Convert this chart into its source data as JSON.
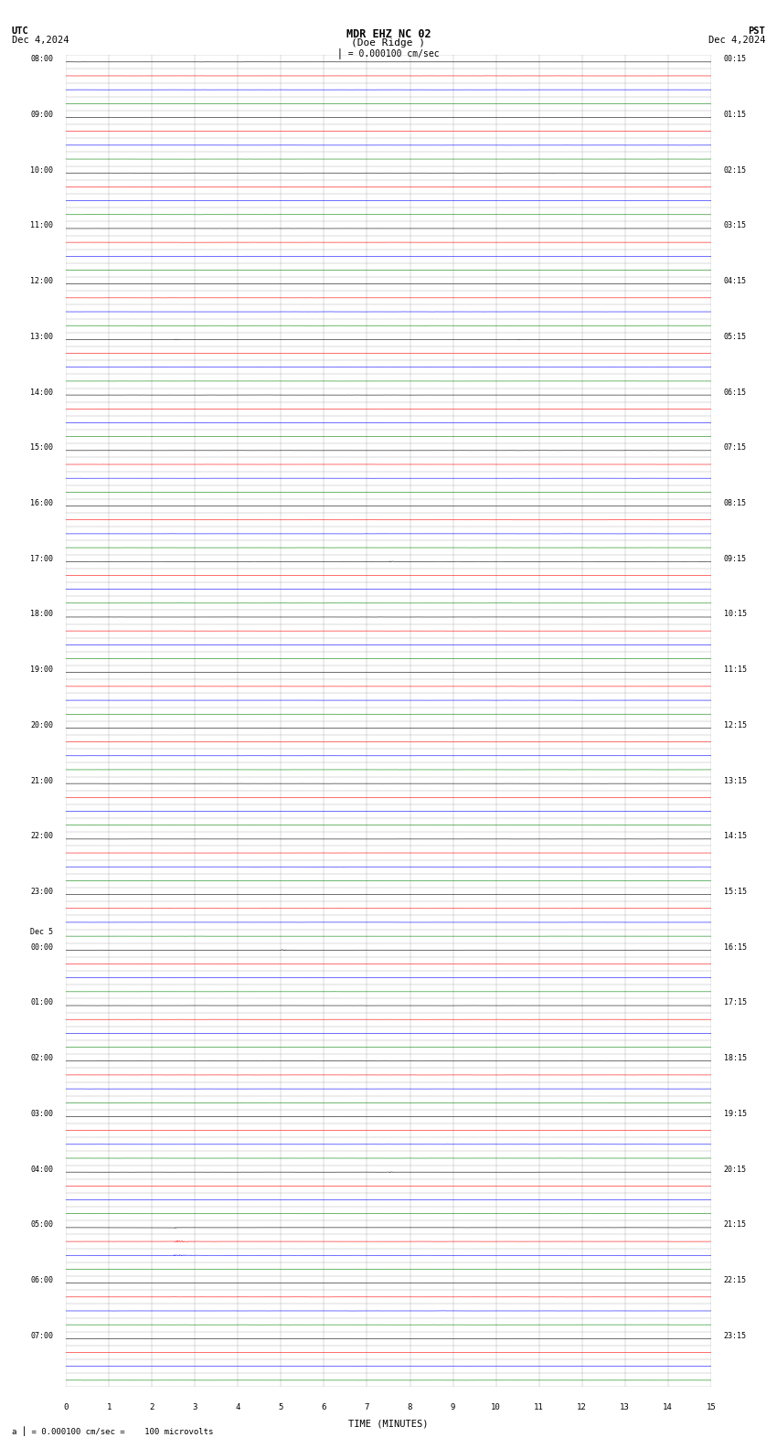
{
  "title_line1": "MDR EHZ NC 02",
  "title_line2": "(Doe Ridge )",
  "scale_label": "= 0.000100 cm/sec",
  "bottom_label": "= 0.000100 cm/sec =    100 microvolts",
  "utc_label": "UTC",
  "utc_date": "Dec 4,2024",
  "pst_label": "PST",
  "pst_date": "Dec 4,2024",
  "xlabel": "TIME (MINUTES)",
  "bg_color": "#ffffff",
  "grid_color": "#999999",
  "trace_colors": [
    "black",
    "red",
    "blue",
    "green"
  ],
  "num_hour_rows": 24,
  "traces_per_hour": 4,
  "noise_amp": 0.0035,
  "left_labels": [
    "08:00",
    "09:00",
    "10:00",
    "11:00",
    "12:00",
    "13:00",
    "14:00",
    "15:00",
    "16:00",
    "17:00",
    "18:00",
    "19:00",
    "20:00",
    "21:00",
    "22:00",
    "23:00",
    "Dec 5\n00:00",
    "01:00",
    "02:00",
    "03:00",
    "04:00",
    "05:00",
    "06:00",
    "07:00"
  ],
  "right_labels": [
    "00:15",
    "01:15",
    "02:15",
    "03:15",
    "04:15",
    "05:15",
    "06:15",
    "07:15",
    "08:15",
    "09:15",
    "10:15",
    "11:15",
    "12:15",
    "13:15",
    "14:15",
    "15:15",
    "16:15",
    "17:15",
    "18:15",
    "19:15",
    "20:15",
    "21:15",
    "22:15",
    "23:15"
  ],
  "events": [
    {
      "trace_row": 20,
      "minute": 2.5,
      "duration": 0.4,
      "amplitude": 0.025,
      "color_idx": 0
    },
    {
      "trace_row": 20,
      "minute": 10.5,
      "duration": 0.25,
      "amplitude": 0.02,
      "color_idx": 0
    },
    {
      "trace_row": 36,
      "minute": 7.5,
      "duration": 0.4,
      "amplitude": 0.02,
      "color_idx": 0
    },
    {
      "trace_row": 40,
      "minute": 2.5,
      "duration": 2.5,
      "amplitude": 0.06,
      "color_idx": 3
    },
    {
      "trace_row": 40,
      "minute": 2.5,
      "duration": 2.5,
      "amplitude": 0.04,
      "color_idx": 2
    },
    {
      "trace_row": 44,
      "minute": 2.5,
      "duration": 1.5,
      "amplitude": 0.04,
      "color_idx": 2
    },
    {
      "trace_row": 48,
      "minute": 5.0,
      "duration": 0.3,
      "amplitude": 0.015,
      "color_idx": 3
    },
    {
      "trace_row": 64,
      "minute": 5.0,
      "duration": 0.5,
      "amplitude": 0.03,
      "color_idx": 0
    },
    {
      "trace_row": 68,
      "minute": 5.0,
      "duration": 0.4,
      "amplitude": 0.02,
      "color_idx": 2
    },
    {
      "trace_row": 76,
      "minute": 7.5,
      "duration": 0.5,
      "amplitude": 0.025,
      "color_idx": 2
    },
    {
      "trace_row": 80,
      "minute": 7.5,
      "duration": 0.3,
      "amplitude": 0.025,
      "color_idx": 0
    },
    {
      "trace_row": 84,
      "minute": 2.5,
      "duration": 0.3,
      "amplitude": 0.025,
      "color_idx": 0
    },
    {
      "trace_row": 84,
      "minute": 2.5,
      "duration": 0.8,
      "amplitude": 0.035,
      "color_idx": 2
    },
    {
      "trace_row": 85,
      "minute": 2.5,
      "duration": 1.0,
      "amplitude": 0.045,
      "color_idx": 1
    },
    {
      "trace_row": 86,
      "minute": 2.5,
      "duration": 0.8,
      "amplitude": 0.04,
      "color_idx": 2
    },
    {
      "trace_row": 88,
      "minute": 6.5,
      "duration": 0.2,
      "amplitude": 0.015,
      "color_idx": 3
    },
    {
      "trace_row": 92,
      "minute": 6.5,
      "duration": 0.2,
      "amplitude": 0.015,
      "color_idx": 0
    },
    {
      "trace_row": 96,
      "minute": 4.0,
      "duration": 3.0,
      "amplitude": 0.055,
      "color_idx": 1
    },
    {
      "trace_row": 97,
      "minute": 1.5,
      "duration": 1.5,
      "amplitude": 0.05,
      "color_idx": 2
    },
    {
      "trace_row": 104,
      "minute": 8.0,
      "duration": 2.5,
      "amplitude": 0.04,
      "color_idx": 0
    },
    {
      "trace_row": 108,
      "minute": 8.5,
      "duration": 2.5,
      "amplitude": 0.05,
      "color_idx": 3
    },
    {
      "trace_row": 116,
      "minute": 7.5,
      "duration": 0.8,
      "amplitude": 0.065,
      "color_idx": 0
    },
    {
      "trace_row": 120,
      "minute": 6.5,
      "duration": 1.2,
      "amplitude": 0.07,
      "color_idx": 0
    }
  ]
}
